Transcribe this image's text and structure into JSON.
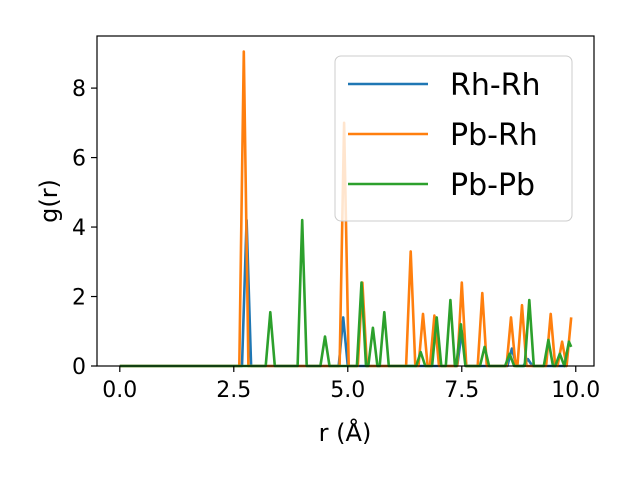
{
  "chart_data": {
    "type": "line",
    "title": "",
    "xlabel": "r (Å)",
    "ylabel": "g(r)",
    "xlim": [
      -0.5,
      10.4
    ],
    "ylim": [
      0,
      9.5
    ],
    "xticks": [
      0.0,
      2.5,
      5.0,
      7.5,
      10.0
    ],
    "xtick_labels": [
      "0.0",
      "2.5",
      "5.0",
      "7.5",
      "10.0"
    ],
    "yticks": [
      0,
      2,
      4,
      6,
      8
    ],
    "ytick_labels": [
      "0",
      "2",
      "4",
      "6",
      "8"
    ],
    "grid": false,
    "legend_position": "top-right",
    "series": [
      {
        "name": "Rh-Rh",
        "color": "#1f77b4",
        "x": [
          0,
          2.68,
          2.78,
          2.88,
          4.8,
          4.9,
          5.0,
          7.4,
          7.5,
          7.6,
          8.5,
          8.6,
          8.7,
          8.85,
          8.95,
          9.05,
          9.8
        ],
        "y": [
          0,
          0,
          4.2,
          0,
          0,
          1.4,
          0,
          0,
          1.0,
          0,
          0,
          0.5,
          0,
          0,
          0.2,
          0,
          0
        ]
      },
      {
        "name": "Pb-Rh",
        "color": "#ff7f0e",
        "x": [
          0,
          2.62,
          2.72,
          2.82,
          4.82,
          4.92,
          5.02,
          5.22,
          5.32,
          5.42,
          6.28,
          6.38,
          6.48,
          6.55,
          6.65,
          6.75,
          6.8,
          6.9,
          7.0,
          7.4,
          7.5,
          7.6,
          7.85,
          7.95,
          8.05,
          8.48,
          8.58,
          8.68,
          8.72,
          8.82,
          8.92,
          9.35,
          9.45,
          9.55,
          9.6,
          9.7,
          9.8,
          9.9
        ],
        "y": [
          0,
          0,
          9.05,
          0,
          0,
          7.0,
          0,
          0,
          2.4,
          0,
          0,
          3.3,
          0,
          0,
          1.5,
          0,
          0,
          1.45,
          0,
          0,
          2.4,
          0,
          0,
          2.1,
          0,
          0,
          1.4,
          0,
          0,
          1.75,
          0,
          0,
          1.5,
          0,
          0,
          0.7,
          0,
          1.4
        ]
      },
      {
        "name": "Pb-Pb",
        "color": "#2ca02c",
        "x": [
          0,
          3.2,
          3.3,
          3.4,
          3.9,
          4.0,
          4.1,
          4.4,
          4.5,
          4.6,
          5.2,
          5.3,
          5.4,
          5.45,
          5.55,
          5.65,
          5.7,
          5.8,
          5.9,
          6.5,
          6.6,
          6.7,
          6.85,
          6.95,
          7.05,
          7.15,
          7.25,
          7.35,
          7.38,
          7.48,
          7.58,
          7.9,
          8.0,
          8.1,
          8.45,
          8.55,
          8.65,
          8.88,
          8.98,
          9.08,
          9.3,
          9.4,
          9.5,
          9.55,
          9.65,
          9.75,
          9.85,
          9.9
        ],
        "y": [
          0,
          0,
          1.55,
          0,
          0,
          4.2,
          0,
          0,
          0.85,
          0,
          0,
          2.4,
          0,
          0,
          1.1,
          0,
          0,
          1.55,
          0,
          0,
          0.4,
          0,
          0,
          1.4,
          0,
          0,
          1.9,
          0,
          0,
          1.2,
          0,
          0,
          0.55,
          0,
          0,
          0.35,
          0,
          0,
          1.9,
          0,
          0,
          0.75,
          0,
          0,
          0.35,
          0,
          0.7,
          0.55
        ]
      }
    ]
  }
}
